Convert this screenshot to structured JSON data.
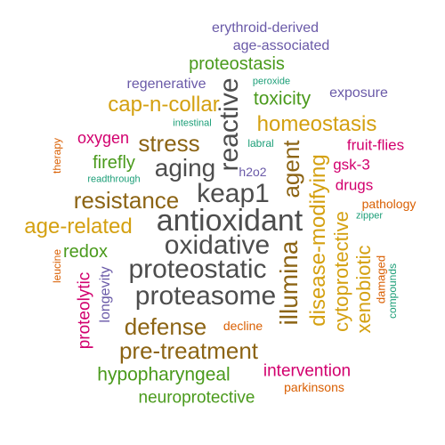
{
  "palette": {
    "gray": "#4d4d4d",
    "brown": "#8c6414",
    "gold": "#d4a010",
    "green": "#4a9a1c",
    "magenta": "#d2006e",
    "purple": "#6a5aa8",
    "orange": "#d95f02",
    "teal": "#1b9e77"
  },
  "words": [
    {
      "text": "antioxidant",
      "color": "gray"
    },
    {
      "text": "oxidative",
      "color": "gray"
    },
    {
      "text": "proteostatic",
      "color": "gray"
    },
    {
      "text": "proteasome",
      "color": "gray"
    },
    {
      "text": "keap1",
      "color": "gray"
    },
    {
      "text": "aging",
      "color": "gray"
    },
    {
      "text": "reactive",
      "color": "gray"
    },
    {
      "text": "agent",
      "color": "brown"
    },
    {
      "text": "illumina",
      "color": "brown"
    },
    {
      "text": "stress",
      "color": "brown"
    },
    {
      "text": "resistance",
      "color": "brown"
    },
    {
      "text": "defense",
      "color": "brown"
    },
    {
      "text": "pre-treatment",
      "color": "brown"
    },
    {
      "text": "disease-modifying",
      "color": "gold"
    },
    {
      "text": "cytoprotective",
      "color": "gold"
    },
    {
      "text": "xenobiotic",
      "color": "gold"
    },
    {
      "text": "homeostasis",
      "color": "gold"
    },
    {
      "text": "cap-n-collar",
      "color": "gold"
    },
    {
      "text": "age-related",
      "color": "gold"
    },
    {
      "text": "proteostasis",
      "color": "green"
    },
    {
      "text": "toxicity",
      "color": "green"
    },
    {
      "text": "firefly",
      "color": "green"
    },
    {
      "text": "redox",
      "color": "green"
    },
    {
      "text": "hypopharyngeal",
      "color": "green"
    },
    {
      "text": "neuroprotective",
      "color": "green"
    },
    {
      "text": "oxygen",
      "color": "magenta"
    },
    {
      "text": "fruit-flies",
      "color": "magenta"
    },
    {
      "text": "gsk-3",
      "color": "magenta"
    },
    {
      "text": "drugs",
      "color": "magenta"
    },
    {
      "text": "proteolytic",
      "color": "magenta"
    },
    {
      "text": "intervention",
      "color": "magenta"
    },
    {
      "text": "erythroid-derived",
      "color": "purple"
    },
    {
      "text": "age-associated",
      "color": "purple"
    },
    {
      "text": "regenerative",
      "color": "purple"
    },
    {
      "text": "exposure",
      "color": "purple"
    },
    {
      "text": "h2o2",
      "color": "purple"
    },
    {
      "text": "longevity",
      "color": "purple"
    },
    {
      "text": "therapy",
      "color": "orange"
    },
    {
      "text": "leucine",
      "color": "orange"
    },
    {
      "text": "pathology",
      "color": "orange"
    },
    {
      "text": "damaged",
      "color": "orange"
    },
    {
      "text": "decline",
      "color": "orange"
    },
    {
      "text": "parkinsons",
      "color": "orange"
    },
    {
      "text": "peroxide",
      "color": "teal"
    },
    {
      "text": "intestinal",
      "color": "teal"
    },
    {
      "text": "labral",
      "color": "teal"
    },
    {
      "text": "readthrough",
      "color": "teal"
    },
    {
      "text": "zipper",
      "color": "teal"
    },
    {
      "text": "compounds",
      "color": "teal"
    }
  ]
}
